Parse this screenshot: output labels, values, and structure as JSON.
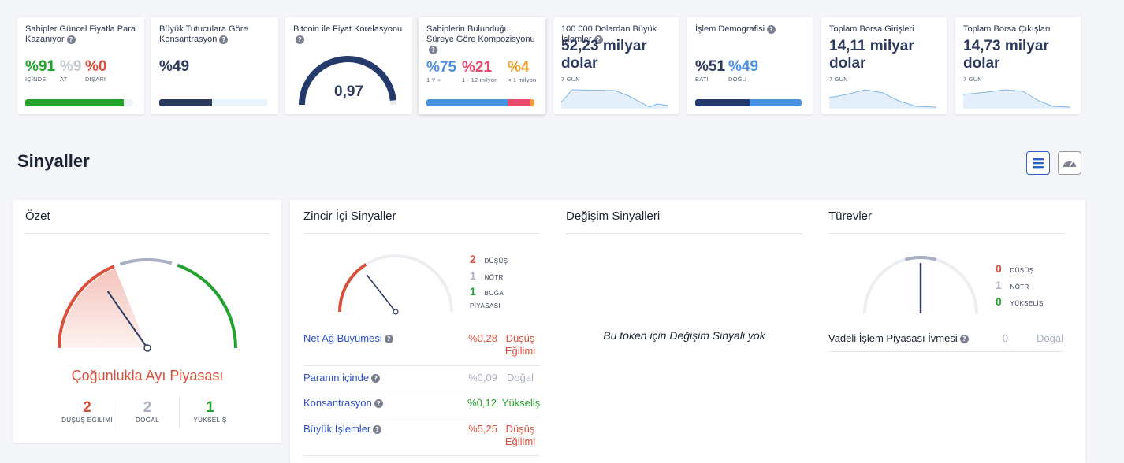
{
  "stats": {
    "holders_profit": {
      "title": "Sahipler Güncel Fiyatla Para Kazanıyor",
      "in_val": "%91",
      "in_lbl": "İÇİNDE",
      "at_val": "%9",
      "at_lbl": "AT",
      "out_val": "%0",
      "out_lbl": "DIŞARI",
      "in_fraction": 0.91
    },
    "concentration": {
      "title": "Büyük Tutuculara Göre Konsantrasyon",
      "value": "%49",
      "fraction": 0.49
    },
    "correlation": {
      "title": "Bitcoin ile Fiyat Korelasyonu",
      "value": "0,97",
      "fraction": 0.97
    },
    "composition": {
      "title": "Sahiplerin Bulunduğu Süreye Göre Kompozisyonu",
      "a_val": "%75",
      "a_lbl": "1 Y +",
      "b_val": "%21",
      "b_lbl": "1 - 12 milyon",
      "c_val": "%4",
      "c_lbl": "< 1 milyon",
      "fractions": [
        0.75,
        0.21,
        0.04
      ]
    },
    "large_tx": {
      "title": "100.000 Dolardan Büyük İşlemler",
      "value": "52,23 milyar dolar",
      "period": "7 GÜN"
    },
    "demography": {
      "title": "İşlem Demografisi",
      "west_val": "%51",
      "west_lbl": "BATI",
      "east_val": "%49",
      "east_lbl": "DOĞU",
      "west_fraction": 0.51
    },
    "inflows": {
      "title": "Toplam Borsa Girişleri",
      "value": "14,11 milyar dolar",
      "period": "7 GÜN"
    },
    "outflows": {
      "title": "Toplam Borsa Çıkışları",
      "value": "14,73 milyar dolar",
      "period": "7 GÜN"
    }
  },
  "signals": {
    "title": "Sinyaller",
    "summary": {
      "title": "Özet",
      "verdict": "Çoğunlukla Ayı Piyasası",
      "bear_count": "2",
      "bear_lbl": "DÜŞÜŞ EĞİLİMİ",
      "neutral_count": "2",
      "neutral_lbl": "DOĞAL",
      "bull_count": "1",
      "bull_lbl": "YÜKSELİŞ"
    },
    "onchain": {
      "title": "Zincir İçi Sinyaller",
      "bear_count": "2",
      "bear_lbl": "DÜŞÜŞ",
      "neutral_count": "1",
      "neutral_lbl": "NÖTR",
      "bull_count": "1",
      "bull_lbl": "BOĞA PİYASASI",
      "rows": [
        {
          "name": "Net Ağ Büyümesi",
          "value": "%0,28",
          "status": "Düşüş Eğilimi"
        },
        {
          "name": "Paranın içinde",
          "value": "%0,09",
          "status": "Doğal"
        },
        {
          "name": "Konsantrasyon",
          "value": "%0,12",
          "status": "Yükseliş"
        },
        {
          "name": "Büyük İşlemler",
          "value": "%5,25",
          "status": "Düşüş Eğilimi"
        }
      ]
    },
    "exchange": {
      "title": "Değişim Sinyalleri",
      "empty": "Bu token için Değişim Sinyali yok"
    },
    "derivatives": {
      "title": "Türevler",
      "bear_count": "0",
      "bear_lbl": "DÜŞÜŞ",
      "neutral_count": "1",
      "neutral_lbl": "NÖTR",
      "bull_count": "0",
      "bull_lbl": "YÜKSELİŞ",
      "rows": [
        {
          "name": "Vadeli İşlem Piyasası İvmesi",
          "value": "0",
          "status": "Doğal"
        }
      ]
    }
  },
  "colors": {
    "bear": "#d9503d",
    "bull": "#23a32d",
    "neutral": "#a9b0c4",
    "navy": "#2c3a5e",
    "blue": "#4a90e2"
  }
}
